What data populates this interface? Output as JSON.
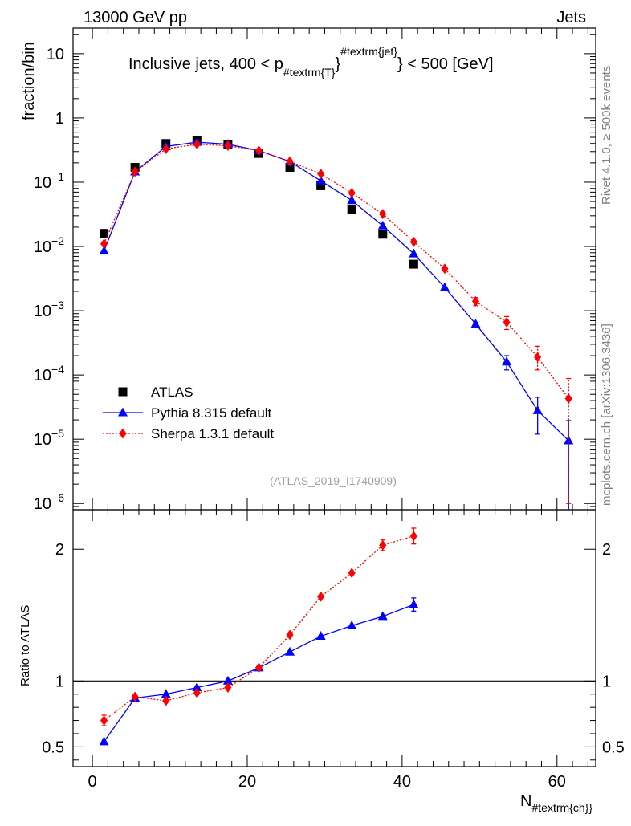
{
  "header": {
    "left": "13000 GeV pp",
    "right": "Jets"
  },
  "side_labels": {
    "rivet": "Rivet 4.1.0, ≥ 500k events",
    "mcplots": "mcplots.cern.ch [arXiv:1306.3436]"
  },
  "analysis_tag": "(ATLAS_2019_I1740909)",
  "colors": {
    "atlas": "#000000",
    "pythia": "#0000ff",
    "sherpa": "#ff0000"
  },
  "chart_data": [
    {
      "type": "scatter",
      "panel": "main",
      "title": {
        "prefix": "Inclusive jets, 400 < p",
        "sub": "#textrm{T}",
        "sup": "#textrm{jet}",
        "suffix": "} < 500 [GeV]"
      },
      "ylabel": "fraction/bin",
      "yscale": "log",
      "ylim": [
        8e-07,
        25
      ],
      "xlim": [
        -2.5,
        65
      ],
      "ytick_labels": [
        {
          "v": 1e-06,
          "base": "10",
          "exp": "−6"
        },
        {
          "v": 1e-05,
          "base": "10",
          "exp": "−5"
        },
        {
          "v": 0.0001,
          "base": "10",
          "exp": "−4"
        },
        {
          "v": 0.001,
          "base": "10",
          "exp": "−3"
        },
        {
          "v": 0.01,
          "base": "10",
          "exp": "−2"
        },
        {
          "v": 0.1,
          "base": "10",
          "exp": "−1"
        },
        {
          "v": 1,
          "base": "1",
          "exp": ""
        },
        {
          "v": 10,
          "base": "10",
          "exp": ""
        }
      ],
      "legend": {
        "position": "lower-left",
        "entries": [
          "ATLAS",
          "Pythia 8.315 default",
          "Sherpa 1.3.1 default"
        ]
      },
      "series": [
        {
          "name": "ATLAS",
          "marker": "square",
          "x": [
            1.5,
            5.5,
            9.5,
            13.5,
            17.5,
            21.5,
            25.5,
            29.5,
            33.5,
            37.5,
            41.5
          ],
          "y": [
            0.016,
            0.17,
            0.4,
            0.44,
            0.39,
            0.28,
            0.17,
            0.088,
            0.038,
            0.0155,
            0.0053
          ]
        },
        {
          "name": "Pythia 8.315 default",
          "marker": "triangle",
          "line": "solid",
          "x": [
            1.5,
            5.5,
            9.5,
            13.5,
            17.5,
            21.5,
            25.5,
            29.5,
            33.5,
            37.5,
            41.5,
            45.5,
            49.5,
            53.5,
            57.5,
            61.5
          ],
          "y": [
            0.0085,
            0.145,
            0.36,
            0.42,
            0.39,
            0.31,
            0.21,
            0.105,
            0.052,
            0.021,
            0.0077,
            0.0023,
            0.00062,
            0.00016,
            2.8e-05,
            9.5e-06
          ],
          "err_lo": [
            0,
            0,
            0,
            0,
            0,
            0,
            0,
            0,
            0,
            0,
            0,
            0,
            4e-05,
            4e-05,
            1.6e-05,
            9.4e-06
          ],
          "err_hi": [
            0,
            0,
            0,
            0,
            0,
            0,
            0,
            0,
            0,
            0,
            0,
            0,
            4e-05,
            4e-05,
            1.7e-05,
            1e-05
          ]
        },
        {
          "name": "Sherpa 1.3.1 default",
          "marker": "diamond",
          "line": "dotted",
          "x": [
            1.5,
            5.5,
            9.5,
            13.5,
            17.5,
            21.5,
            25.5,
            29.5,
            33.5,
            37.5,
            41.5,
            45.5,
            49.5,
            53.5,
            57.5,
            61.5
          ],
          "y": [
            0.011,
            0.145,
            0.33,
            0.39,
            0.37,
            0.31,
            0.21,
            0.135,
            0.068,
            0.032,
            0.0118,
            0.0045,
            0.0014,
            0.00066,
            0.00019,
            4.3e-05
          ],
          "err_lo": [
            0.0008,
            0,
            0,
            0,
            0,
            0,
            0,
            0,
            0,
            0,
            0,
            0,
            0.0002,
            0.00015,
            7e-05,
            4.2e-05
          ],
          "err_hi": [
            0.0008,
            0,
            0,
            0,
            0,
            0,
            0,
            0,
            0,
            0,
            0,
            0,
            0.0002,
            0.00015,
            9e-05,
            4.5e-05
          ]
        }
      ]
    },
    {
      "type": "line",
      "panel": "ratio",
      "ylabel": "Ratio to ATLAS",
      "xlabel": {
        "main": "N",
        "sub": "#textrm{ch}}"
      },
      "ylim": [
        0.35,
        2.3
      ],
      "xlim": [
        -2.5,
        65
      ],
      "xticks": [
        0,
        20,
        40,
        60
      ],
      "yticks": [
        0.5,
        1,
        2
      ],
      "reference_line": 1,
      "series": [
        {
          "name": "Pythia 8.315 default",
          "marker": "triangle",
          "line": "solid",
          "x": [
            1.5,
            5.5,
            9.5,
            13.5,
            17.5,
            21.5,
            25.5,
            29.5,
            33.5,
            37.5,
            41.5
          ],
          "y": [
            0.54,
            0.87,
            0.9,
            0.95,
            1.0,
            1.1,
            1.22,
            1.34,
            1.42,
            1.49,
            1.58
          ],
          "err": [
            0.02,
            0,
            0,
            0,
            0,
            0,
            0,
            0,
            0,
            0,
            0.05
          ]
        },
        {
          "name": "Sherpa 1.3.1 default",
          "marker": "diamond",
          "line": "dotted",
          "x": [
            1.5,
            5.5,
            9.5,
            13.5,
            17.5,
            21.5,
            25.5,
            29.5,
            33.5,
            37.5,
            41.5
          ],
          "y": [
            0.7,
            0.88,
            0.85,
            0.91,
            0.95,
            1.1,
            1.35,
            1.64,
            1.82,
            2.03,
            2.1
          ],
          "err": [
            0.04,
            0,
            0,
            0,
            0,
            0,
            0,
            0,
            0,
            0.04,
            0.06
          ]
        }
      ]
    }
  ]
}
